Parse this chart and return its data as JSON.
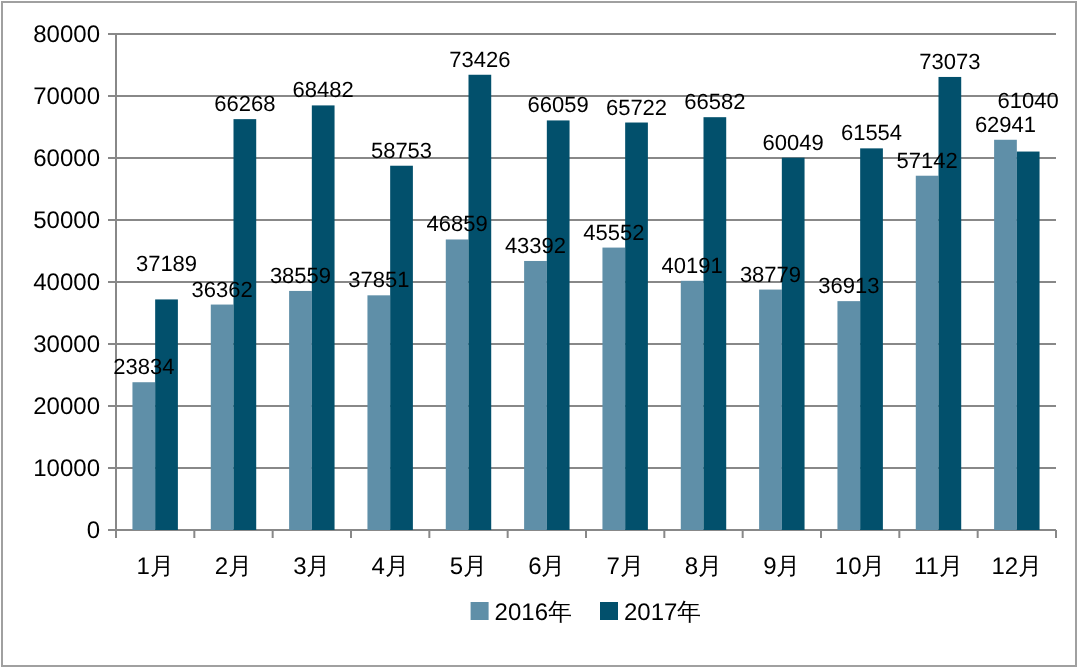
{
  "chart_data": {
    "type": "bar",
    "categories": [
      "1月",
      "2月",
      "3月",
      "4月",
      "5月",
      "6月",
      "7月",
      "8月",
      "9月",
      "10月",
      "11月",
      "12月"
    ],
    "series": [
      {
        "name": "2016年",
        "color": "#5f8fa8",
        "values": [
          23834,
          36362,
          38559,
          37851,
          46859,
          43392,
          45552,
          40191,
          38779,
          36913,
          57142,
          62941
        ]
      },
      {
        "name": "2017年",
        "color": "#02506c",
        "values": [
          37189,
          66268,
          68482,
          58753,
          73426,
          66059,
          65722,
          66582,
          60049,
          61554,
          73073,
          61040
        ]
      }
    ],
    "ylim": [
      0,
      80000
    ],
    "yticks": [
      0,
      10000,
      20000,
      30000,
      40000,
      50000,
      60000,
      70000,
      80000
    ],
    "grid": "y",
    "legend": "bottom",
    "data_labels": true
  }
}
